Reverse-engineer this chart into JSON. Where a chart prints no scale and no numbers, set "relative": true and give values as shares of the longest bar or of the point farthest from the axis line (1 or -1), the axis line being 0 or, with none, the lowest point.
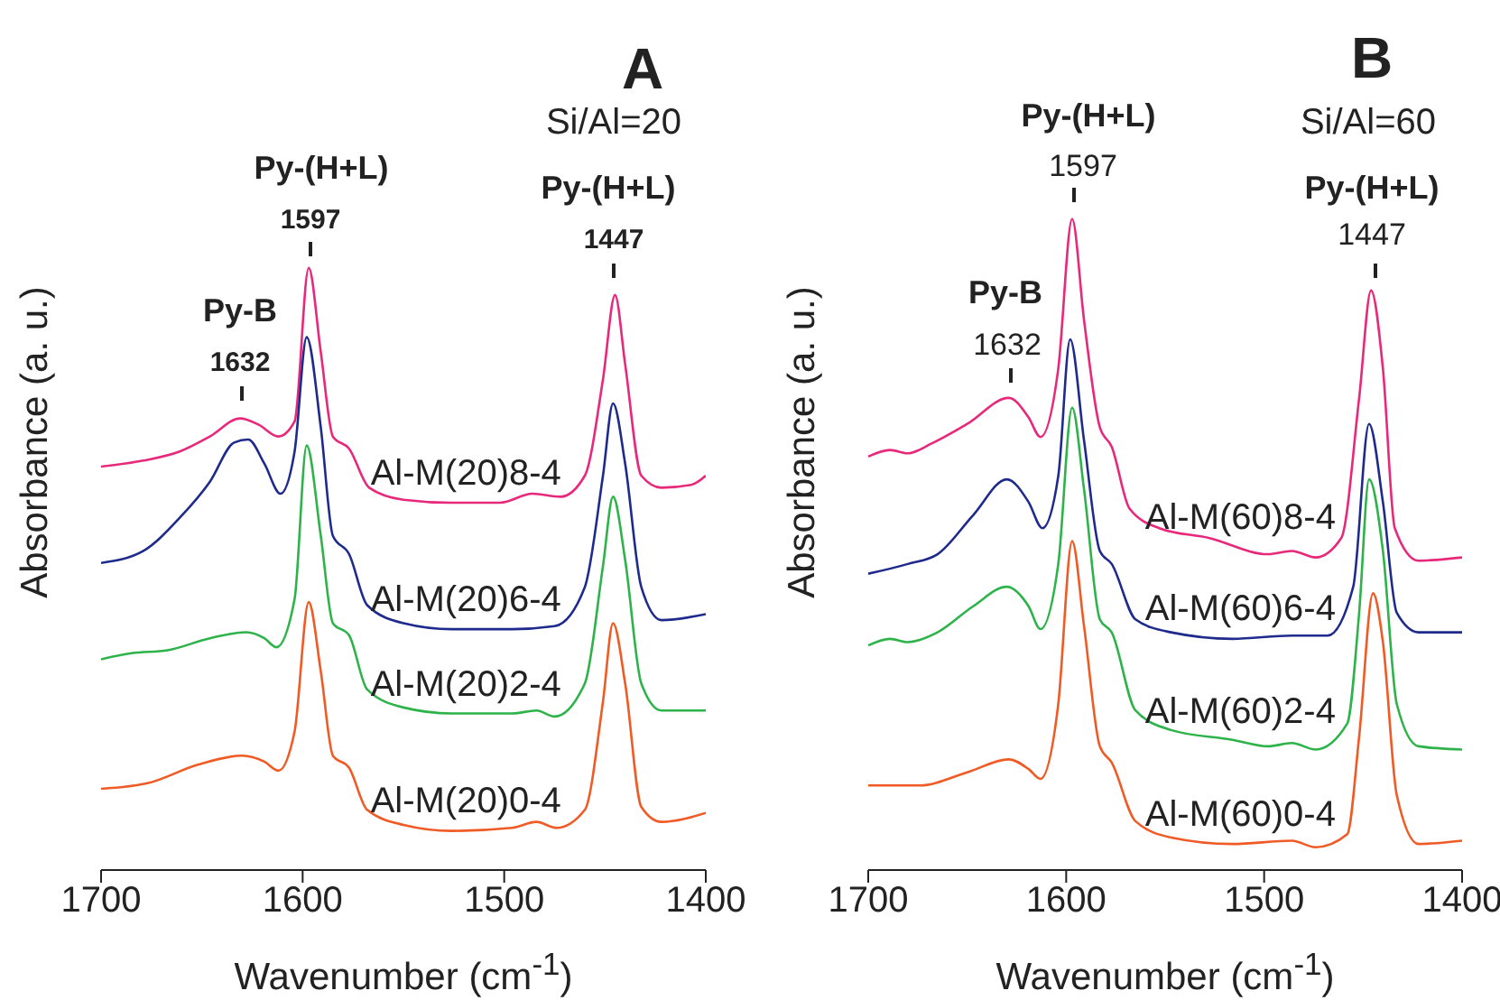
{
  "chart_data": [
    {
      "type": "line",
      "relative": true,
      "xlabel": "Wavenumber (cm$^{-1}$)",
      "ylabel": "Absorbance (a. u.)",
      "xlim": [
        1700,
        1400
      ],
      "xticks": [
        1700,
        1600,
        1500,
        1400
      ],
      "tick_labels": "x",
      "marker": "none",
      "line_style": "solid",
      "annotations": [
        "A",
        "Si/Al=20",
        "Py-B",
        "1632",
        "Py-(H+L)",
        "1597",
        "Py-(H+L)",
        "1447"
      ],
      "series": [
        {
          "name": "Al-M(20)8-4",
          "color": "#e8287a",
          "x": [
            1700,
            1679,
            1661,
            1646,
            1631,
            1622,
            1612,
            1604,
            1597,
            1591,
            1585,
            1577,
            1567,
            1550,
            1526,
            1502,
            1486,
            1472,
            1460,
            1451,
            1445,
            1440,
            1432,
            1422,
            1407,
            1400
          ],
          "values": [
            0.67,
            0.68,
            0.695,
            0.72,
            0.75,
            0.74,
            0.72,
            0.745,
            1.0,
            0.86,
            0.72,
            0.7,
            0.635,
            0.615,
            0.61,
            0.61,
            0.625,
            0.62,
            0.655,
            0.815,
            0.955,
            0.84,
            0.655,
            0.635,
            0.64,
            0.655
          ]
        },
        {
          "name": "Al-M(20)6-4",
          "color": "#1e2a8c",
          "x": [
            1700,
            1679,
            1661,
            1646,
            1634,
            1627,
            1619,
            1611,
            1604,
            1598,
            1591,
            1585,
            1577,
            1568,
            1550,
            1526,
            1496,
            1475,
            1460,
            1451,
            1446,
            1440,
            1432,
            1422,
            1400
          ],
          "values": [
            0.51,
            0.53,
            0.585,
            0.645,
            0.71,
            0.715,
            0.675,
            0.625,
            0.695,
            0.885,
            0.735,
            0.555,
            0.525,
            0.44,
            0.41,
            0.4,
            0.4,
            0.405,
            0.47,
            0.655,
            0.775,
            0.675,
            0.47,
            0.415,
            0.425
          ]
        },
        {
          "name": "Al-M(20)2-4",
          "color": "#2db34a",
          "x": [
            1700,
            1685,
            1667,
            1646,
            1628,
            1619,
            1613,
            1604,
            1598,
            1591,
            1585,
            1577,
            1568,
            1550,
            1526,
            1496,
            1484,
            1475,
            1460,
            1451,
            1446,
            1440,
            1432,
            1422,
            1400
          ],
          "values": [
            0.35,
            0.36,
            0.365,
            0.385,
            0.395,
            0.385,
            0.37,
            0.45,
            0.705,
            0.555,
            0.41,
            0.39,
            0.3,
            0.27,
            0.26,
            0.26,
            0.265,
            0.255,
            0.31,
            0.505,
            0.62,
            0.515,
            0.31,
            0.265,
            0.265
          ]
        },
        {
          "name": "Al-M(20)0-4",
          "color": "#f05a24",
          "x": [
            1700,
            1676,
            1652,
            1630,
            1619,
            1612,
            1604,
            1597,
            1591,
            1585,
            1577,
            1568,
            1550,
            1526,
            1496,
            1484,
            1474,
            1460,
            1451,
            1446,
            1440,
            1432,
            1422,
            1400
          ],
          "values": [
            0.135,
            0.145,
            0.175,
            0.19,
            0.18,
            0.165,
            0.23,
            0.445,
            0.33,
            0.19,
            0.17,
            0.1,
            0.075,
            0.065,
            0.07,
            0.08,
            0.07,
            0.1,
            0.28,
            0.41,
            0.31,
            0.105,
            0.08,
            0.095
          ]
        }
      ]
    },
    {
      "type": "line",
      "relative": true,
      "xlabel": "Wavenumber (cm$^{-1}$)",
      "ylabel": "Absorbance (a. u.)",
      "xlim": [
        1700,
        1400
      ],
      "xticks": [
        1700,
        1600,
        1500,
        1400
      ],
      "tick_labels": "x",
      "marker": "none",
      "line_style": "solid",
      "annotations": [
        "B",
        "Si/Al=60",
        "Py-B",
        "1632",
        "Py-(H+L)",
        "1597",
        "Py-(H+L)",
        "1447"
      ],
      "series": [
        {
          "name": "Al-M(60)8-4",
          "color": "#e8287a",
          "x": [
            1700,
            1689,
            1680,
            1668,
            1650,
            1629,
            1619,
            1613,
            1604,
            1597,
            1591,
            1583,
            1577,
            1568,
            1553,
            1528,
            1498,
            1486,
            1474,
            1461,
            1452,
            1446,
            1440,
            1434,
            1422,
            1400
          ],
          "values": [
            0.635,
            0.645,
            0.64,
            0.655,
            0.685,
            0.725,
            0.695,
            0.665,
            0.77,
            1.0,
            0.845,
            0.68,
            0.65,
            0.555,
            0.525,
            0.51,
            0.485,
            0.49,
            0.48,
            0.51,
            0.725,
            0.89,
            0.77,
            0.525,
            0.475,
            0.48
          ]
        },
        {
          "name": "Al-M(60)6-4",
          "color": "#1e2a8c",
          "x": [
            1700,
            1680,
            1665,
            1647,
            1630,
            1619,
            1612,
            1604,
            1598,
            1591,
            1583,
            1577,
            1565,
            1547,
            1516,
            1486,
            1468,
            1455,
            1447,
            1440,
            1433,
            1422,
            1400
          ],
          "values": [
            0.455,
            0.47,
            0.485,
            0.545,
            0.6,
            0.565,
            0.525,
            0.605,
            0.815,
            0.66,
            0.49,
            0.47,
            0.385,
            0.365,
            0.355,
            0.36,
            0.36,
            0.435,
            0.685,
            0.565,
            0.395,
            0.365,
            0.365
          ]
        },
        {
          "name": "Al-M(60)2-4",
          "color": "#2db34a",
          "x": [
            1700,
            1689,
            1680,
            1665,
            1647,
            1630,
            1619,
            1613,
            1604,
            1597,
            1591,
            1583,
            1577,
            1565,
            1547,
            1516,
            1498,
            1486,
            1474,
            1458,
            1452,
            1447,
            1440,
            1433,
            1422,
            1400
          ],
          "values": [
            0.345,
            0.355,
            0.35,
            0.365,
            0.405,
            0.435,
            0.405,
            0.37,
            0.47,
            0.71,
            0.585,
            0.385,
            0.365,
            0.245,
            0.215,
            0.2,
            0.19,
            0.195,
            0.185,
            0.225,
            0.395,
            0.6,
            0.49,
            0.255,
            0.19,
            0.185
          ]
        },
        {
          "name": "Al-M(60)0-4",
          "color": "#f05a24",
          "x": [
            1700,
            1674,
            1650,
            1629,
            1619,
            1613,
            1604,
            1597,
            1591,
            1583,
            1577,
            1565,
            1547,
            1516,
            1486,
            1474,
            1458,
            1452,
            1445,
            1440,
            1433,
            1422,
            1400
          ],
          "values": [
            0.13,
            0.13,
            0.15,
            0.17,
            0.155,
            0.14,
            0.255,
            0.505,
            0.375,
            0.19,
            0.165,
            0.075,
            0.05,
            0.04,
            0.045,
            0.035,
            0.055,
            0.205,
            0.425,
            0.35,
            0.115,
            0.04,
            0.045
          ]
        }
      ]
    }
  ]
}
